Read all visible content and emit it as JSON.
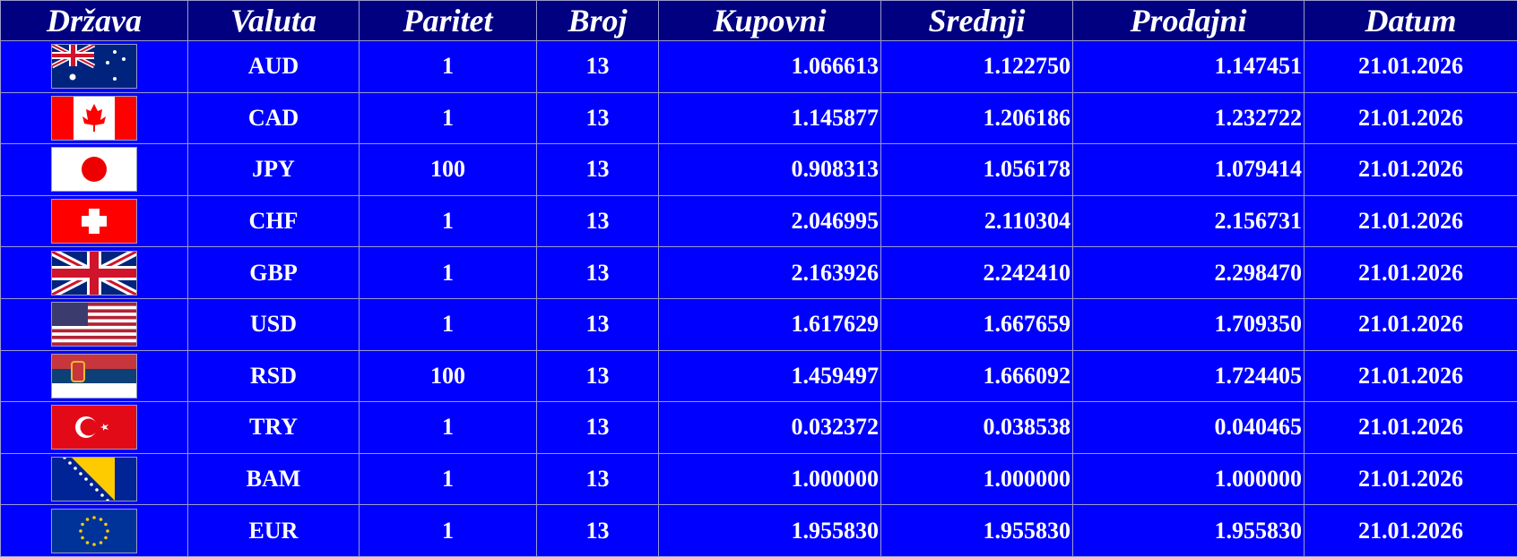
{
  "headers": [
    "Država",
    "Valuta",
    "Paritet",
    "Broj",
    "Kupovni",
    "Srednji",
    "Prodajni",
    "Datum"
  ],
  "rows": [
    {
      "flag": "australia-flag",
      "valuta": "AUD",
      "paritet": "1",
      "broj": "13",
      "kupovni": "1.066613",
      "srednji": "1.122750",
      "prodajni": "1.147451",
      "datum": "21.01.2026"
    },
    {
      "flag": "canada-flag",
      "valuta": "CAD",
      "paritet": "1",
      "broj": "13",
      "kupovni": "1.145877",
      "srednji": "1.206186",
      "prodajni": "1.232722",
      "datum": "21.01.2026"
    },
    {
      "flag": "japan-flag",
      "valuta": "JPY",
      "paritet": "100",
      "broj": "13",
      "kupovni": "0.908313",
      "srednji": "1.056178",
      "prodajni": "1.079414",
      "datum": "21.01.2026"
    },
    {
      "flag": "switzerland-flag",
      "valuta": "CHF",
      "paritet": "1",
      "broj": "13",
      "kupovni": "2.046995",
      "srednji": "2.110304",
      "prodajni": "2.156731",
      "datum": "21.01.2026"
    },
    {
      "flag": "uk-flag",
      "valuta": "GBP",
      "paritet": "1",
      "broj": "13",
      "kupovni": "2.163926",
      "srednji": "2.242410",
      "prodajni": "2.298470",
      "datum": "21.01.2026"
    },
    {
      "flag": "usa-flag",
      "valuta": "USD",
      "paritet": "1",
      "broj": "13",
      "kupovni": "1.617629",
      "srednji": "1.667659",
      "prodajni": "1.709350",
      "datum": "21.01.2026"
    },
    {
      "flag": "serbia-flag",
      "valuta": "RSD",
      "paritet": "100",
      "broj": "13",
      "kupovni": "1.459497",
      "srednji": "1.666092",
      "prodajni": "1.724405",
      "datum": "21.01.2026"
    },
    {
      "flag": "turkey-flag",
      "valuta": "TRY",
      "paritet": "1",
      "broj": "13",
      "kupovni": "0.032372",
      "srednji": "0.038538",
      "prodajni": "0.040465",
      "datum": "21.01.2026"
    },
    {
      "flag": "bosnia-flag",
      "valuta": "BAM",
      "paritet": "1",
      "broj": "13",
      "kupovni": "1.000000",
      "srednji": "1.000000",
      "prodajni": "1.000000",
      "datum": "21.01.2026"
    },
    {
      "flag": "eu-flag",
      "valuta": "EUR",
      "paritet": "1",
      "broj": "13",
      "kupovni": "1.955830",
      "srednji": "1.955830",
      "prodajni": "1.955830",
      "datum": "21.01.2026"
    }
  ],
  "colors": {
    "header_bg": "#000080",
    "row_bg": "#0000ff",
    "text": "#ffffff"
  }
}
